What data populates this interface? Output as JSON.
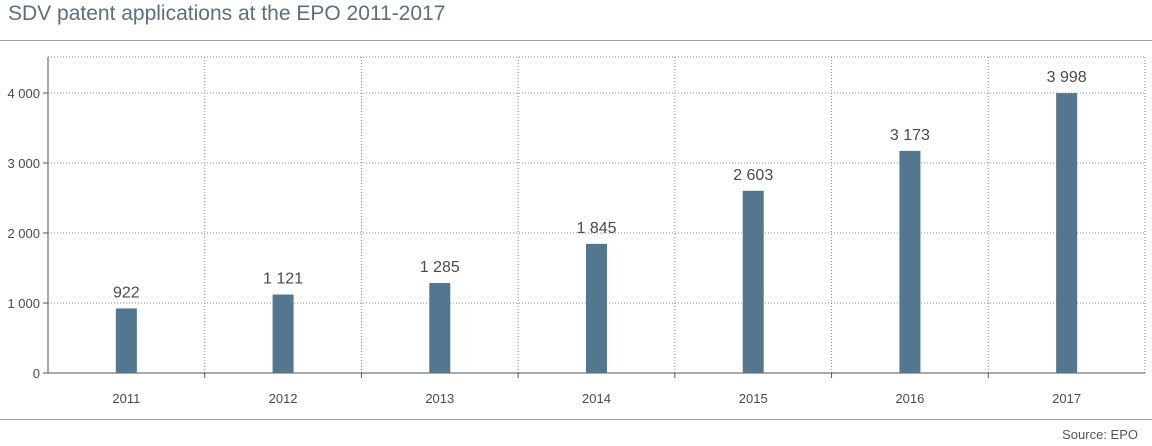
{
  "chart_data": {
    "type": "bar",
    "title": "SDV patent applications at the EPO 2011-2017",
    "categories": [
      "2011",
      "2012",
      "2013",
      "2014",
      "2015",
      "2016",
      "2017"
    ],
    "values": [
      922,
      1121,
      1285,
      1845,
      2603,
      3173,
      3998
    ],
    "value_labels": [
      "922",
      "1 121",
      "1 285",
      "1 845",
      "2 603",
      "3 173",
      "3 998"
    ],
    "xlabel": "",
    "ylabel": "",
    "ylim": [
      0,
      4500
    ],
    "y_ticks": [
      0,
      1000,
      2000,
      3000,
      4000
    ],
    "y_tick_labels": [
      "0",
      "1 000",
      "2 000",
      "3 000",
      "4 000"
    ],
    "grid": true,
    "bar_color": "#53778f",
    "grid_color": "#8a8a8a",
    "source": "Source: EPO"
  }
}
